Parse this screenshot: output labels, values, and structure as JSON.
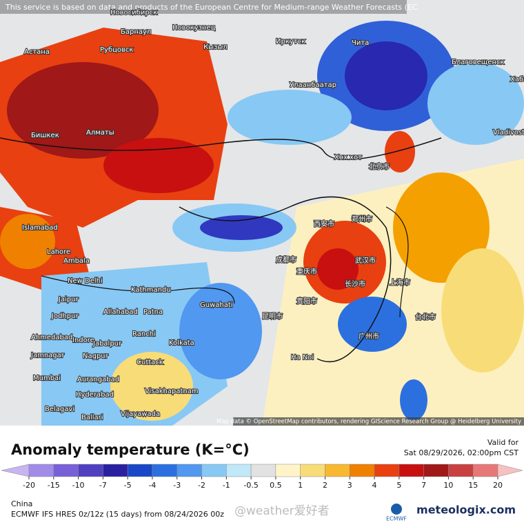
{
  "header": {
    "notice": "This service is based on data and products of the European Centre for Medium-range Weather Forecasts (EC"
  },
  "map": {
    "attribution": "Map data © OpenStreetMap contributors, rendering GIScience Research Group @ Heidelberg University",
    "cities": [
      "Новосибирск",
      "Барнаул",
      "Новокузнец",
      "Астана",
      "Рубцовск",
      "Кызыл",
      "Иркутск",
      "Чита",
      "Благовещенск",
      "Хабаро",
      "Улаанбаатар",
      "Бишкек",
      "Алматы",
      "Vladivostok",
      "Islamabad",
      "Lahore",
      "Ambala",
      "New Delhi",
      "Kathmandu",
      "Guwahati",
      "Jaipur",
      "Jodhpur",
      "Allahabad",
      "Patna",
      "Ahmedabad",
      "Indore",
      "Ranchi",
      "Kolkata",
      "Jamnagar",
      "Nagpur",
      "Jabalpur",
      "Cuttack",
      "Mumbai",
      "Aurangabad",
      "Hyderabad",
      "Visakhapatnam",
      "Belagavi",
      "Ballari",
      "Vijayawada",
      "Ha Noi",
      "北京市",
      "郑州市",
      "武汉市",
      "上海市",
      "长沙市",
      "重庆市",
      "成都市",
      "广州市",
      "台北市",
      "贵阳市",
      "昆明市",
      "西安市",
      "Хөх хот"
    ]
  },
  "footer": {
    "title": "Anomaly temperature (K=°C)",
    "valid_label": "Valid for",
    "valid_time": "Sat 08/29/2026, 02:00pm CST",
    "region": "China",
    "model": "ECMWF IFS HRES 0z/12z (15 days) from 08/24/2026 00z",
    "watermark": "@weather爱好者",
    "logo_left": "ECMWF",
    "logo_right": "meteologix.com"
  },
  "legend": {
    "ticks": [
      -20,
      -15,
      -10,
      -7,
      -5,
      -4,
      -3,
      -2,
      -1,
      -0.5,
      0.5,
      1,
      2,
      3,
      4,
      5,
      7,
      10,
      15,
      20
    ],
    "colors": [
      "#c8b4f0",
      "#a08ce8",
      "#7860d8",
      "#5040c0",
      "#2820a0",
      "#1848c8",
      "#2c70e0",
      "#5098f0",
      "#88c8f4",
      "#c0e8f8",
      "#e2e2e2",
      "#fff4c8",
      "#f8dc78",
      "#f8b830",
      "#f08000",
      "#e84010",
      "#c81010",
      "#a01818",
      "#c84040",
      "#e87878",
      "#f8c0c0"
    ]
  }
}
